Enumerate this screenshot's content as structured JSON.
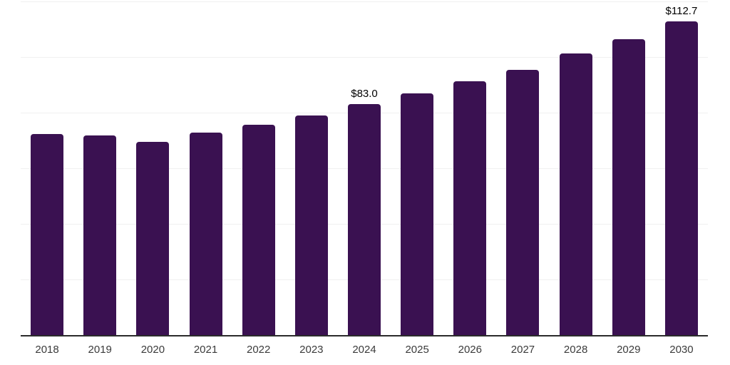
{
  "chart_data": {
    "type": "bar",
    "title": "",
    "categories": [
      "2018",
      "2019",
      "2020",
      "2021",
      "2022",
      "2023",
      "2024",
      "2025",
      "2026",
      "2027",
      "2028",
      "2029",
      "2030"
    ],
    "values": [
      72.4,
      71.8,
      69.6,
      72.9,
      75.7,
      78.9,
      83.0,
      86.8,
      91.4,
      95.4,
      101.2,
      106.5,
      112.7
    ],
    "value_labels": [
      null,
      null,
      null,
      null,
      null,
      null,
      "$83.0",
      null,
      null,
      null,
      null,
      null,
      "$112.7"
    ],
    "xlabel": "",
    "ylabel": "",
    "ylim": [
      0,
      120
    ],
    "gridline_values": [
      20,
      40,
      60,
      80,
      100,
      120
    ],
    "grid": true,
    "y_axis_tick_labels_visible": false,
    "legend": "none",
    "colors": {
      "bar": "#3a1151",
      "gridline": "#f0f0f0",
      "axis_line": "#2b2b2b",
      "category_label": "#3b3b3b",
      "value_label": "#000000",
      "background": "#ffffff"
    }
  }
}
